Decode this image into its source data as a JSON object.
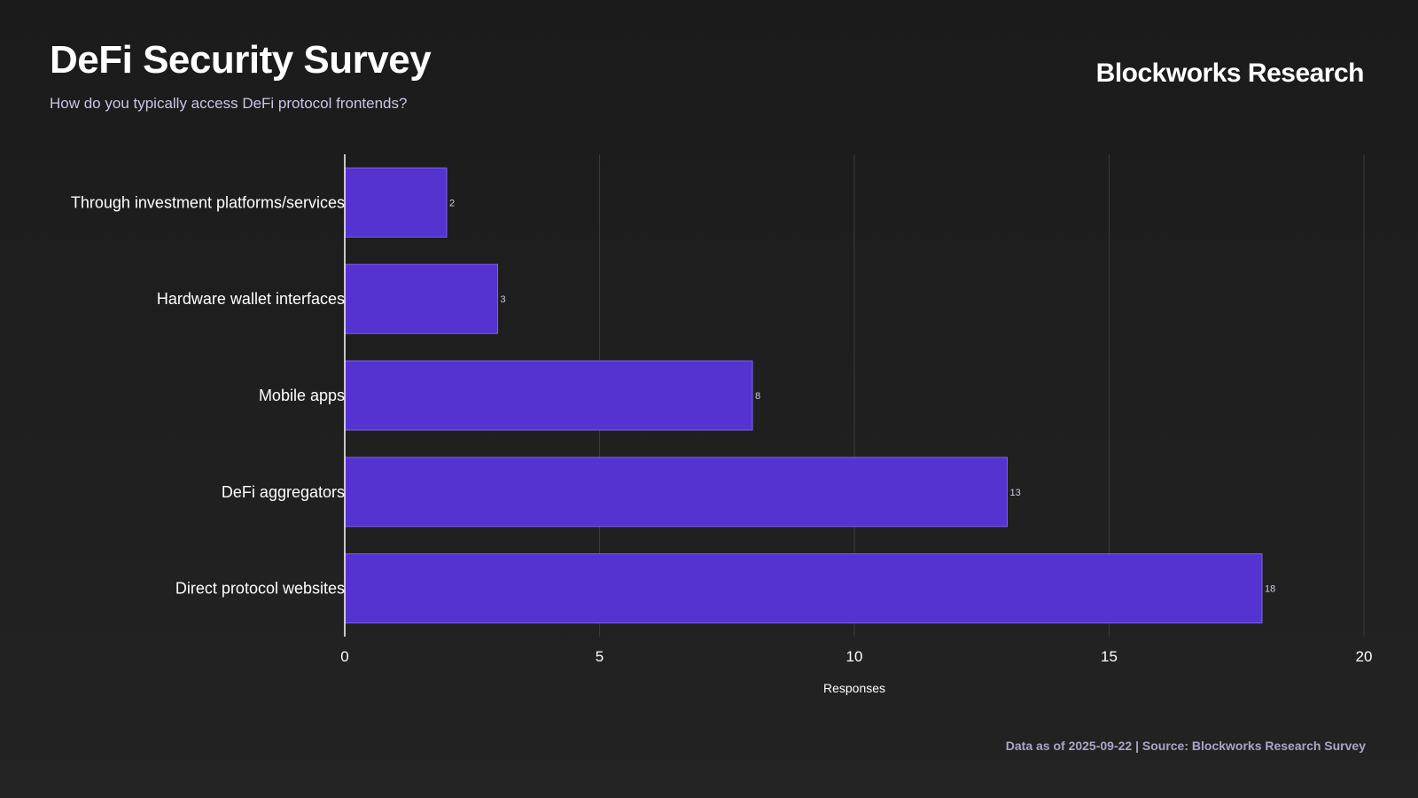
{
  "header": {
    "title": "DeFi Security Survey",
    "subtitle": "How do you typically access DeFi protocol frontends?",
    "brand": "Blockworks Research"
  },
  "footer": {
    "source": "Data as of 2025-09-22 | Source: Blockworks Research Survey"
  },
  "colors": {
    "bar": "#5433d0",
    "bar_border": "#7a63e6",
    "background": "#1e1e1e",
    "text": "#ffffff",
    "muted": "#a9a6c6"
  },
  "chart_data": {
    "type": "bar",
    "orientation": "horizontal",
    "title": "DeFi Security Survey",
    "subtitle": "How do you typically access DeFi protocol frontends?",
    "categories": [
      "Through investment platforms/services",
      "Hardware wallet interfaces",
      "Mobile apps",
      "DeFi aggregators",
      "Direct protocol websites"
    ],
    "values": [
      2,
      3,
      8,
      13,
      18
    ],
    "xlabel": "Responses",
    "ylabel": "",
    "xlim": [
      0,
      20
    ],
    "xticks": [
      0,
      5,
      10,
      15,
      20
    ],
    "grid": true,
    "data_labels": true
  }
}
